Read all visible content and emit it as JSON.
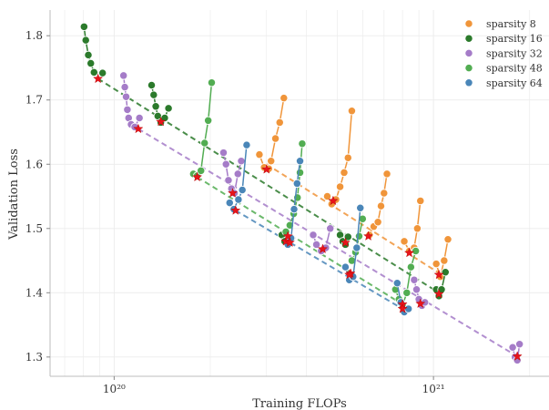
{
  "chart_data": {
    "type": "scatter",
    "title": "",
    "xlabel": "Training FLOPs",
    "ylabel": "Validation Loss",
    "xscale": "log",
    "xlim": [
      6.3e+19,
      2.3e+21
    ],
    "ylim": [
      1.27,
      1.84
    ],
    "x_ticks": [
      {
        "value": 1e+20,
        "label": "10²⁰"
      },
      {
        "value": 1e+21,
        "label": "10²¹"
      }
    ],
    "y_ticks": [
      1.3,
      1.4,
      1.5,
      1.6,
      1.7,
      1.8
    ],
    "grid": true,
    "legend_position": "top-right",
    "optimum_marker": "red star",
    "series": [
      {
        "name": "sparsity 8",
        "color": "#f0953a",
        "groups": [
          {
            "x": [
              2.85e+20,
              2.95e+20,
              3.05e+20,
              3.1e+20,
              3.2e+20,
              3.3e+20,
              3.4e+20
            ],
            "y": [
              1.615,
              1.595,
              1.593,
              1.605,
              1.64,
              1.665,
              1.703
            ]
          },
          {
            "x": [
              4.65e+20,
              4.8e+20,
              4.95e+20,
              5.1e+20,
              5.25e+20,
              5.4e+20,
              5.55e+20
            ],
            "y": [
              1.55,
              1.538,
              1.545,
              1.565,
              1.587,
              1.61,
              1.683
            ]
          },
          {
            "x": [
              6.3e+20,
              6.5e+20,
              6.7e+20,
              6.85e+20,
              7e+20,
              7.15e+20
            ],
            "y": [
              1.49,
              1.503,
              1.51,
              1.535,
              1.555,
              1.585
            ]
          },
          {
            "x": [
              8.1e+20,
              8.4e+20,
              8.7e+20,
              8.9e+20,
              9.1e+20
            ],
            "y": [
              1.48,
              1.465,
              1.47,
              1.5,
              1.543
            ]
          },
          {
            "x": [
              1.02e+21,
              1.05e+21,
              1.08e+21,
              1.11e+21
            ],
            "y": [
              1.445,
              1.425,
              1.45,
              1.483
            ]
          }
        ],
        "optima": {
          "x": [
            3e+20,
            4.85e+20,
            6.25e+20,
            8.4e+20,
            1.04e+21
          ],
          "y": [
            1.592,
            1.543,
            1.488,
            1.462,
            1.428
          ]
        },
        "fit": {
          "x": [
            3e+20,
            1.07e+21
          ],
          "y": [
            1.6,
            1.427
          ]
        }
      },
      {
        "name": "sparsity 16",
        "color": "#2b7a2b",
        "groups": [
          {
            "x": [
              8.05e+19,
              8.15e+19,
              8.3e+19,
              8.45e+19,
              8.65e+19,
              9.2e+19
            ],
            "y": [
              1.814,
              1.793,
              1.77,
              1.757,
              1.743,
              1.742
            ]
          },
          {
            "x": [
              1.31e+20,
              1.33e+20,
              1.35e+20,
              1.37e+20,
              1.4e+20,
              1.44e+20,
              1.48e+20
            ],
            "y": [
              1.723,
              1.708,
              1.69,
              1.675,
              1.665,
              1.672,
              1.687
            ]
          },
          {
            "x": [
              3.35e+20,
              3.42e+20,
              3.5e+20,
              3.6e+20
            ],
            "y": [
              1.49,
              1.48,
              1.475,
              1.485
            ]
          },
          {
            "x": [
              5.1e+20,
              5.2e+20,
              5.3e+20,
              5.4e+20
            ],
            "y": [
              1.49,
              1.48,
              1.475,
              1.487
            ]
          },
          {
            "x": [
              1.02e+21,
              1.04e+21,
              1.06e+21,
              1.09e+21
            ],
            "y": [
              1.405,
              1.395,
              1.405,
              1.432
            ]
          }
        ],
        "optima": {
          "x": [
            8.9e+19,
            1.4e+20,
            3.45e+20,
            5.3e+20,
            1.04e+21
          ],
          "y": [
            1.733,
            1.666,
            1.48,
            1.478,
            1.398
          ]
        },
        "fit": {
          "x": [
            8.9e+19,
            1.04e+21
          ],
          "y": [
            1.733,
            1.4
          ]
        }
      },
      {
        "name": "sparsity 32",
        "color": "#a57cc8",
        "groups": [
          {
            "x": [
              1.07e+20,
              1.08e+20,
              1.09e+20,
              1.1e+20,
              1.11e+20,
              1.13e+20,
              1.16e+20,
              1.2e+20
            ],
            "y": [
              1.738,
              1.72,
              1.705,
              1.685,
              1.672,
              1.662,
              1.658,
              1.672
            ]
          },
          {
            "x": [
              2.2e+20,
              2.24e+20,
              2.28e+20,
              2.33e+20,
              2.38e+20,
              2.44e+20,
              2.5e+20
            ],
            "y": [
              1.618,
              1.6,
              1.575,
              1.562,
              1.555,
              1.585,
              1.605
            ]
          },
          {
            "x": [
              4.2e+20,
              4.3e+20,
              4.45e+20,
              4.6e+20,
              4.75e+20
            ],
            "y": [
              1.49,
              1.475,
              1.465,
              1.47,
              1.5
            ]
          },
          {
            "x": [
              8.7e+20,
              8.85e+20,
              9e+20,
              9.2e+20,
              9.4e+20
            ],
            "y": [
              1.42,
              1.405,
              1.39,
              1.38,
              1.385
            ]
          },
          {
            "x": [
              1.77e+21,
              1.8e+21,
              1.83e+21,
              1.86e+21
            ],
            "y": [
              1.315,
              1.3,
              1.295,
              1.32
            ]
          }
        ],
        "optima": {
          "x": [
            1.19e+20,
            2.35e+20,
            4.5e+20,
            9.1e+20,
            1.83e+21
          ],
          "y": [
            1.655,
            1.555,
            1.468,
            1.383,
            1.301
          ]
        },
        "fit": {
          "x": [
            1.19e+20,
            1.83e+21
          ],
          "y": [
            1.655,
            1.301
          ]
        }
      },
      {
        "name": "sparsity 48",
        "color": "#52ad52",
        "groups": [
          {
            "x": [
              1.77e+20,
              1.82e+20,
              1.87e+20,
              1.92e+20,
              1.97e+20,
              2.02e+20
            ],
            "y": [
              1.585,
              1.582,
              1.59,
              1.633,
              1.668,
              1.727
            ]
          },
          {
            "x": [
              3.45e+20,
              3.55e+20,
              3.65e+20,
              3.75e+20,
              3.82e+20,
              3.88e+20
            ],
            "y": [
              1.495,
              1.505,
              1.523,
              1.548,
              1.587,
              1.632
            ]
          },
          {
            "x": [
              5.55e+20,
              5.7e+20,
              5.85e+20,
              6e+20
            ],
            "y": [
              1.45,
              1.463,
              1.488,
              1.515
            ]
          },
          {
            "x": [
              7.6e+20,
              7.8e+20,
              8e+20,
              8.25e+20,
              8.5e+20,
              8.8e+20
            ],
            "y": [
              1.405,
              1.39,
              1.38,
              1.4,
              1.44,
              1.465
            ]
          }
        ],
        "optima": {
          "x": [
            1.82e+20,
            3.5e+20,
            5.5e+20,
            8e+20
          ],
          "y": [
            1.58,
            1.488,
            1.43,
            1.382
          ]
        },
        "fit": {
          "x": [
            1.82e+20,
            8e+20
          ],
          "y": [
            1.58,
            1.382
          ]
        }
      },
      {
        "name": "sparsity 64",
        "color": "#4a86b8",
        "groups": [
          {
            "x": [
              2.3e+20,
              2.37e+20,
              2.45e+20,
              2.52e+20,
              2.6e+20
            ],
            "y": [
              1.54,
              1.53,
              1.545,
              1.56,
              1.63
            ]
          },
          {
            "x": [
              3.5e+20,
              3.58e+20,
              3.66e+20,
              3.74e+20,
              3.82e+20
            ],
            "y": [
              1.475,
              1.485,
              1.53,
              1.57,
              1.605
            ]
          },
          {
            "x": [
              5.3e+20,
              5.45e+20,
              5.6e+20,
              5.75e+20,
              5.9e+20
            ],
            "y": [
              1.44,
              1.42,
              1.425,
              1.47,
              1.532
            ]
          },
          {
            "x": [
              7.7e+20,
              7.9e+20,
              8.1e+20,
              8.35e+20
            ],
            "y": [
              1.415,
              1.385,
              1.37,
              1.375
            ]
          }
        ],
        "optima": {
          "x": [
            2.4e+20,
            3.55e+20,
            5.45e+20,
            8e+20
          ],
          "y": [
            1.528,
            1.478,
            1.428,
            1.375
          ]
        },
        "fit": {
          "x": [
            2.4e+20,
            8e+20
          ],
          "y": [
            1.528,
            1.375
          ]
        }
      }
    ]
  }
}
